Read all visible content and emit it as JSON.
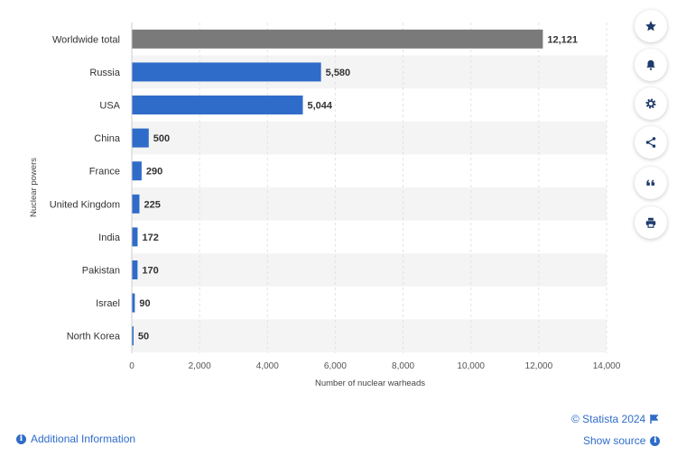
{
  "chart_data": {
    "type": "bar",
    "orientation": "horizontal",
    "categories": [
      "Worldwide total",
      "Russia",
      "USA",
      "China",
      "France",
      "United Kingdom",
      "India",
      "Pakistan",
      "Israel",
      "North Korea"
    ],
    "values": [
      12121,
      5580,
      5044,
      500,
      290,
      225,
      172,
      170,
      90,
      50
    ],
    "value_labels": [
      "12,121",
      "5,580",
      "5,044",
      "500",
      "290",
      "225",
      "172",
      "170",
      "90",
      "50"
    ],
    "xlabel": "Number of nuclear warheads",
    "ylabel": "Nuclear powers",
    "xlim": [
      0,
      14000
    ],
    "xticks": [
      0,
      2000,
      4000,
      6000,
      8000,
      10000,
      12000,
      14000
    ],
    "xtick_labels": [
      "0",
      "2,000",
      "4,000",
      "6,000",
      "8,000",
      "10,000",
      "12,000",
      "14,000"
    ],
    "grid": true,
    "colors": {
      "highlight": "#7a7a7a",
      "bar": "#2f6cc9",
      "band": "#f4f4f4"
    }
  },
  "toolbar": {
    "icons": [
      "star-icon",
      "bell-icon",
      "gear-icon",
      "share-icon",
      "quote-icon",
      "print-icon"
    ]
  },
  "footer": {
    "copyright": "© Statista 2024",
    "show_source": "Show source",
    "additional_info": "Additional Information"
  }
}
